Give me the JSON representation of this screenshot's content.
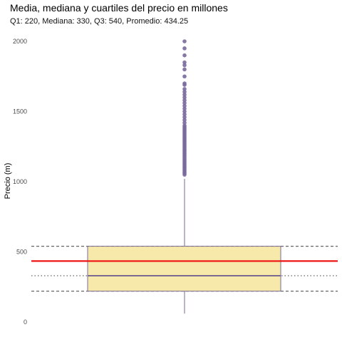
{
  "chart_data": {
    "type": "boxplot",
    "title": "Media, mediana y cuartiles del precio en millones",
    "subtitle": "Q1: 220, Mediana: 330, Q3: 540, Promedio: 434.25",
    "xlabel": "",
    "ylabel": "Precio (m)",
    "ylim": [
      0,
      2000
    ],
    "y_ticks": [
      0,
      500,
      1000,
      1500,
      2000
    ],
    "grid": false,
    "stats": {
      "q1": 220,
      "median": 330,
      "q3": 540,
      "mean": 434.25,
      "whisker_low": 60,
      "whisker_high": 1020
    },
    "outliers": [
      1050,
      1060,
      1070,
      1080,
      1090,
      1100,
      1110,
      1120,
      1130,
      1140,
      1150,
      1160,
      1170,
      1180,
      1190,
      1200,
      1210,
      1220,
      1230,
      1240,
      1250,
      1260,
      1270,
      1280,
      1290,
      1300,
      1310,
      1320,
      1330,
      1340,
      1350,
      1360,
      1370,
      1380,
      1390,
      1400,
      1420,
      1440,
      1460,
      1480,
      1500,
      1520,
      1540,
      1560,
      1580,
      1600,
      1620,
      1640,
      1660,
      1690,
      1700,
      1750,
      1800,
      1830,
      1850,
      1900,
      1950,
      2000
    ],
    "reference_lines": [
      {
        "kind": "q3",
        "value": 540,
        "style": "dashed",
        "color": "#666666"
      },
      {
        "kind": "mean",
        "value": 434.25,
        "style": "solid",
        "color": "#ee1111"
      },
      {
        "kind": "median",
        "value": 330,
        "style": "dotted",
        "color": "#666666"
      },
      {
        "kind": "q1",
        "value": 220,
        "style": "dashed",
        "color": "#666666"
      }
    ],
    "colors": {
      "box_fill": "#f7e8a4",
      "box_stroke": "#7a6a92",
      "outlier": "#7a6a9c",
      "mean_line": "#ee1111",
      "ref_line": "#666666"
    }
  }
}
